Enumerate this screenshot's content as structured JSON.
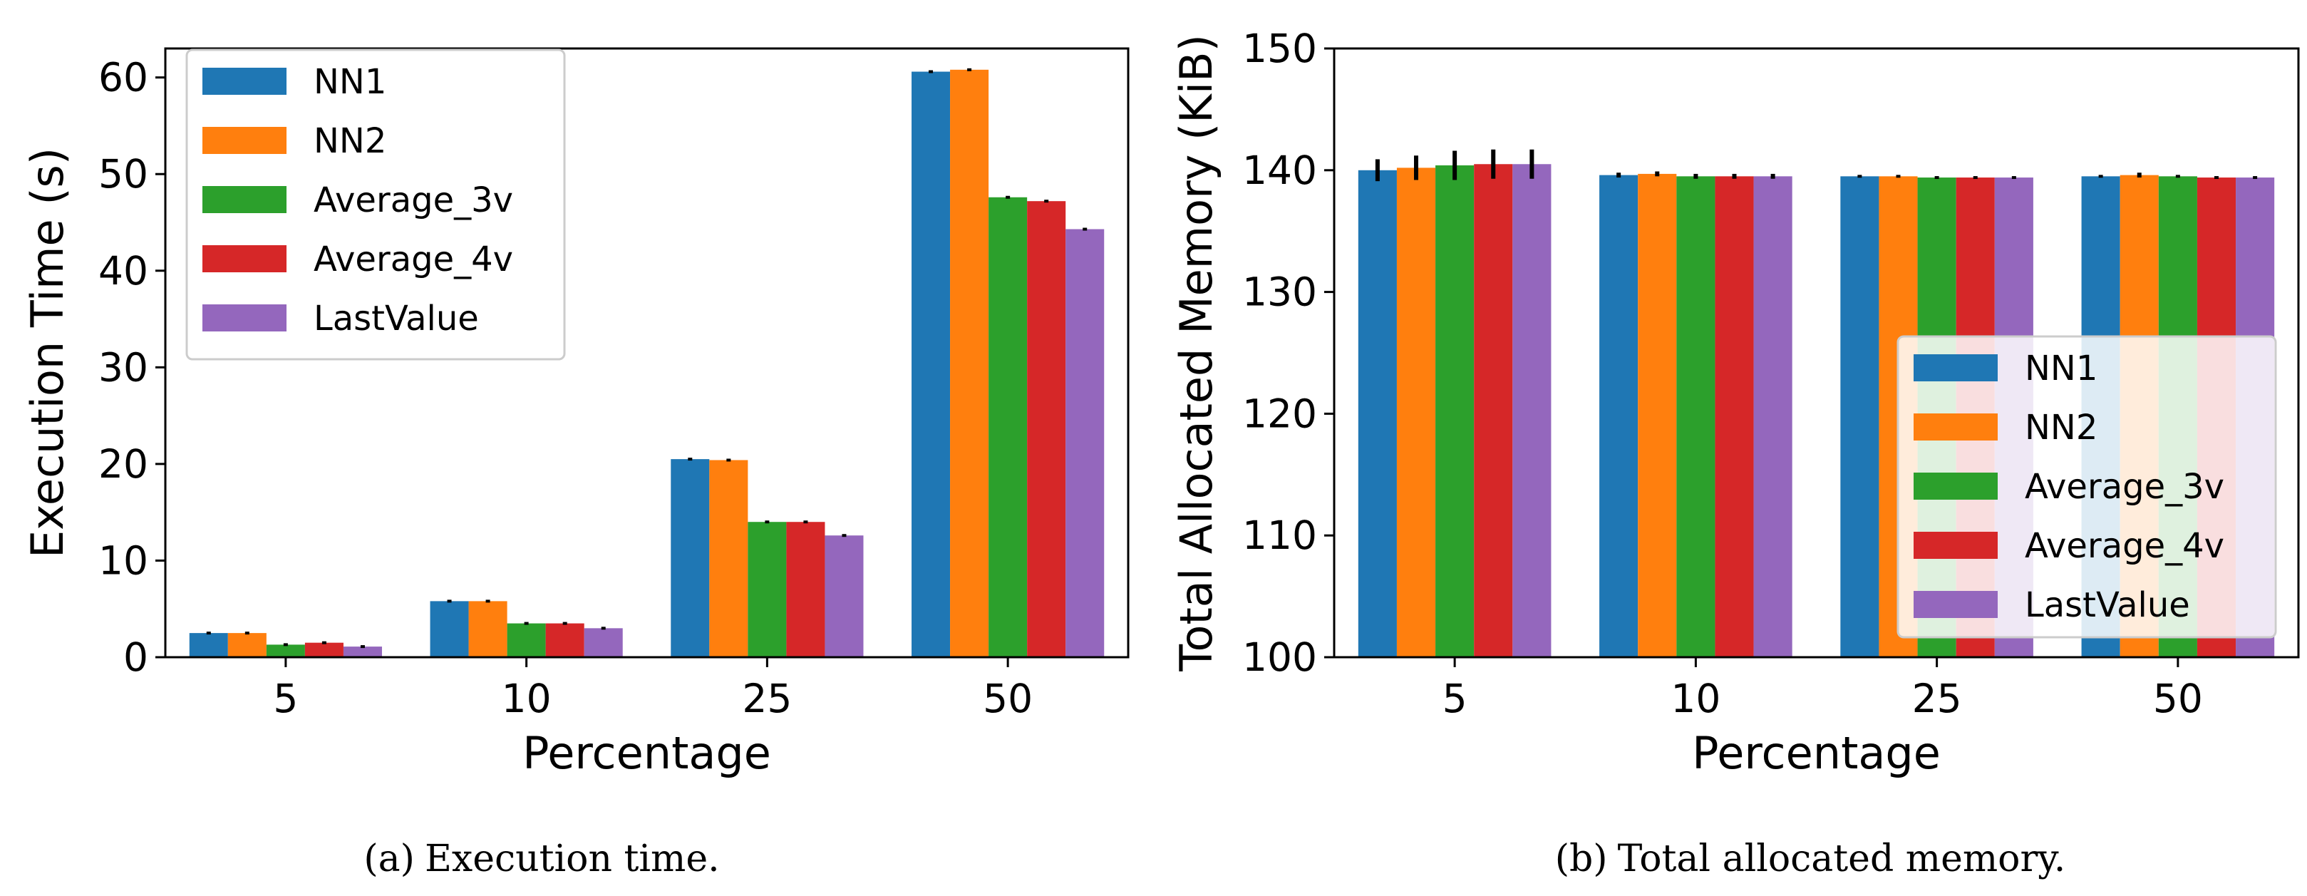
{
  "chart_data": [
    {
      "type": "bar",
      "title": "",
      "xlabel": "Percentage",
      "ylabel": "Execution Time (s)",
      "categories": [
        "5",
        "10",
        "25",
        "50"
      ],
      "ylim": [
        0,
        63
      ],
      "yticks": [
        0,
        10,
        20,
        30,
        40,
        50,
        60
      ],
      "legend_position": "top-left",
      "series": [
        {
          "name": "NN1",
          "color": "#1f77b4",
          "values": [
            2.5,
            5.8,
            20.5,
            60.6
          ],
          "errors": [
            0.05,
            0.05,
            0.1,
            0.1
          ]
        },
        {
          "name": "NN2",
          "color": "#ff7f0e",
          "values": [
            2.5,
            5.8,
            20.4,
            60.8
          ],
          "errors": [
            0.05,
            0.05,
            0.1,
            0.1
          ]
        },
        {
          "name": "Average_3v",
          "color": "#2ca02c",
          "values": [
            1.3,
            3.5,
            14.0,
            47.6
          ],
          "errors": [
            0.05,
            0.05,
            0.1,
            0.1
          ]
        },
        {
          "name": "Average_4v",
          "color": "#d62728",
          "values": [
            1.5,
            3.5,
            14.0,
            47.2
          ],
          "errors": [
            0.05,
            0.05,
            0.1,
            0.1
          ]
        },
        {
          "name": "LastValue",
          "color": "#9467bd",
          "values": [
            1.1,
            3.0,
            12.6,
            44.3
          ],
          "errors": [
            0.05,
            0.05,
            0.1,
            0.1
          ]
        }
      ],
      "caption": {
        "tag": "(a)",
        "text": "Execution time."
      }
    },
    {
      "type": "bar",
      "title": "",
      "xlabel": "Percentage",
      "ylabel": "Total Allocated Memory (KiB)",
      "categories": [
        "5",
        "10",
        "25",
        "50"
      ],
      "ylim": [
        100,
        150
      ],
      "yticks": [
        100,
        110,
        120,
        130,
        140,
        150
      ],
      "legend_position": "lower-right",
      "series": [
        {
          "name": "NN1",
          "color": "#1f77b4",
          "values": [
            140.0,
            139.6,
            139.5,
            139.5
          ],
          "errors": [
            0.9,
            0.2,
            0.1,
            0.1
          ]
        },
        {
          "name": "NN2",
          "color": "#ff7f0e",
          "values": [
            140.2,
            139.7,
            139.5,
            139.6
          ],
          "errors": [
            1.0,
            0.2,
            0.1,
            0.2
          ]
        },
        {
          "name": "Average_3v",
          "color": "#2ca02c",
          "values": [
            140.4,
            139.5,
            139.4,
            139.5
          ],
          "errors": [
            1.2,
            0.2,
            0.1,
            0.1
          ]
        },
        {
          "name": "Average_4v",
          "color": "#d62728",
          "values": [
            140.5,
            139.5,
            139.4,
            139.4
          ],
          "errors": [
            1.2,
            0.2,
            0.1,
            0.1
          ]
        },
        {
          "name": "LastValue",
          "color": "#9467bd",
          "values": [
            140.5,
            139.5,
            139.4,
            139.4
          ],
          "errors": [
            1.2,
            0.2,
            0.1,
            0.1
          ]
        }
      ],
      "caption": {
        "tag": "(b)",
        "text": "Total allocated memory."
      }
    }
  ]
}
